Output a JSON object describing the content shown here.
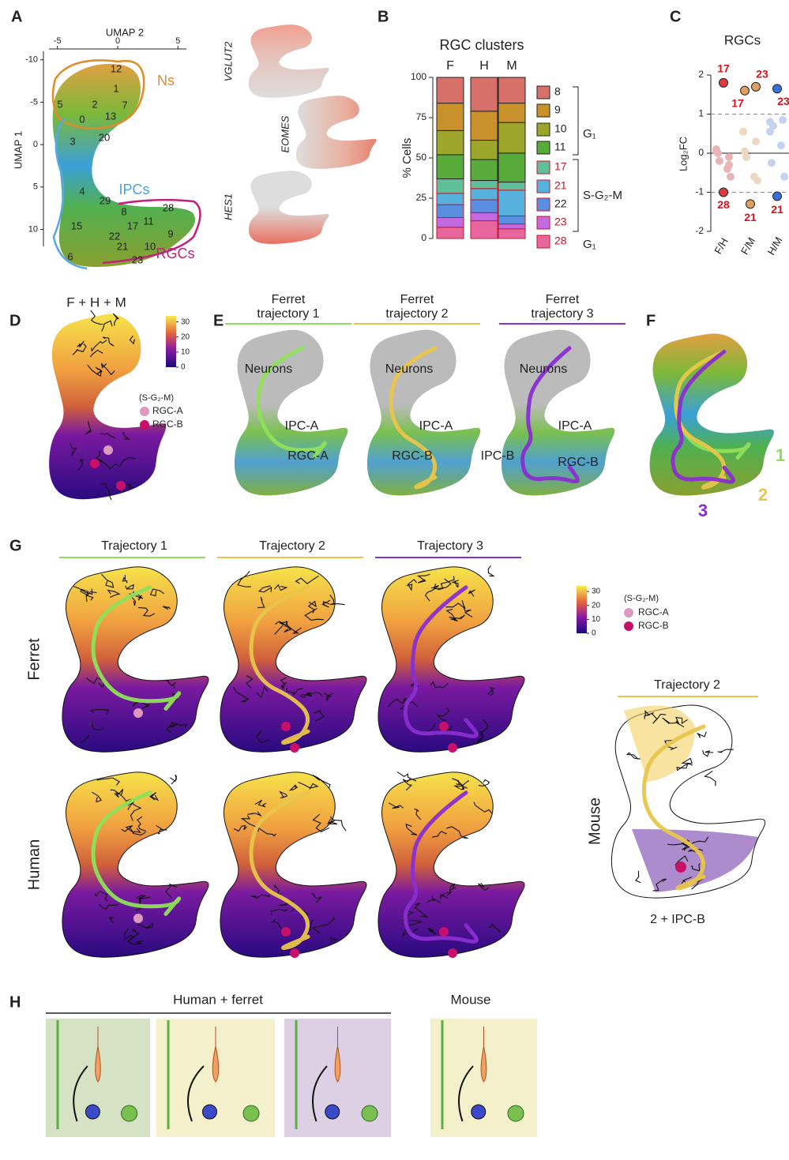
{
  "figure": {
    "A": {
      "letter": "A",
      "x_label": "UMAP 2",
      "y_label": "UMAP 1",
      "xlim": [
        -5.7,
        5.7
      ],
      "ylim": [
        -11,
        12
      ],
      "xticks": [
        -5,
        0,
        5
      ],
      "yticks": [
        -10,
        -5,
        0,
        5,
        10
      ],
      "clusters": [
        "12",
        "1",
        "5",
        "2",
        "7",
        "0",
        "13",
        "20",
        "3",
        "4",
        "29",
        "8",
        "28",
        "15",
        "22",
        "17",
        "11",
        "9",
        "21",
        "10",
        "6",
        "23"
      ],
      "groups": [
        "Ns",
        "IPCs",
        "RGCs"
      ],
      "genes": [
        "VGLUT2",
        "EOMES",
        "HES1"
      ]
    },
    "D": {
      "letter": "D",
      "title": "F + H + M",
      "colorbar": {
        "ylim": [
          0,
          34
        ],
        "yticks": [
          0,
          10,
          20,
          30
        ]
      },
      "phase": "(S-G₂-M)",
      "markers": [
        "RGC-A",
        "RGC-B"
      ]
    },
    "E": {
      "letter": "E",
      "panels": [
        {
          "title_lines": [
            "Ferret",
            "trajectory 1"
          ],
          "labels": [
            "Neurons",
            "IPC-A",
            "RGC-A"
          ]
        },
        {
          "title_lines": [
            "Ferret",
            "trajectory 2"
          ],
          "labels": [
            "Neurons",
            "IPC-A",
            "RGC-B"
          ]
        },
        {
          "title_lines": [
            "Ferret",
            "trajectory 3"
          ],
          "labels": [
            "Neurons",
            "IPC-A",
            "IPC-B",
            "RGC-B"
          ]
        }
      ]
    },
    "F": {
      "letter": "F",
      "labels": [
        "1",
        "2",
        "3"
      ]
    },
    "G": {
      "letter": "G",
      "trajectories": [
        "Trajectory 1",
        "Trajectory 2",
        "Trajectory 3"
      ],
      "species": [
        "Ferret",
        "Human"
      ],
      "colorbar": {
        "ylim": [
          0,
          34
        ],
        "yticks": [
          0,
          10,
          20,
          30
        ]
      },
      "phase": "(S-G₂-M)",
      "markers": [
        "RGC-A",
        "RGC-B"
      ],
      "mouse": {
        "title": "Trajectory 2",
        "species": "Mouse",
        "caption": "2 + IPC-B"
      }
    },
    "H": {
      "letter": "H",
      "groups": [
        "Human + ferret",
        "Mouse"
      ]
    }
  },
  "chart_data": [
    {
      "type": "stacked_bar",
      "label": "B",
      "title": "RGC clusters",
      "y_label": "% Cells",
      "categories": [
        "F",
        "H",
        "M"
      ],
      "ylim": [
        0,
        100
      ],
      "yticks": [
        0,
        25,
        50,
        75,
        100
      ],
      "series": [
        {
          "name": "28",
          "color": "#e8669e",
          "text_color": "#c0182a",
          "values": [
            7,
            11,
            6
          ]
        },
        {
          "name": "23",
          "color": "#c46ae0",
          "text_color": "#c0182a",
          "values": [
            6,
            5,
            3
          ]
        },
        {
          "name": "22",
          "color": "#5a8ee0",
          "text_color": "#222222",
          "values": [
            8,
            8,
            5
          ]
        },
        {
          "name": "21",
          "color": "#56b2dc",
          "text_color": "#c0182a",
          "values": [
            7,
            7,
            16
          ]
        },
        {
          "name": "17",
          "color": "#5fbf9a",
          "text_color": "#c0182a",
          "values": [
            9,
            5,
            5
          ]
        },
        {
          "name": "11",
          "color": "#58ab3a",
          "text_color": "#222222",
          "values": [
            15,
            13,
            18
          ]
        },
        {
          "name": "10",
          "color": "#9ca62a",
          "text_color": "#222222",
          "values": [
            15,
            12,
            19
          ]
        },
        {
          "name": "9",
          "color": "#c9912c",
          "text_color": "#222222",
          "values": [
            17,
            18,
            12
          ]
        },
        {
          "name": "8",
          "color": "#d8706a",
          "text_color": "#222222",
          "values": [
            16,
            21,
            16
          ]
        }
      ],
      "phases": [
        "G₁",
        "S-G₂-M",
        "G₁"
      ]
    },
    {
      "type": "dot",
      "label": "C",
      "title": "RGCs",
      "y_label": "Log₂FC",
      "categories": [
        "F/H",
        "F/M",
        "H/M"
      ],
      "ylim": [
        -2,
        2
      ],
      "yticks": [
        -2,
        -1,
        0,
        1,
        2
      ],
      "groups": [
        {
          "highlight": [
            {
              "value": 1.8,
              "label": "17",
              "color": "#e0393e"
            },
            {
              "value": -1.0,
              "label": "28",
              "color": "#e0393e"
            }
          ],
          "other": [
            0.05,
            -0.1,
            -0.2,
            -0.4,
            0.0,
            -0.6,
            0.1,
            -0.3
          ],
          "other_color": "#e8b4b4"
        },
        {
          "highlight": [
            {
              "value": 1.6,
              "label": "17",
              "color": "#dca060"
            },
            {
              "value": 1.7,
              "label": "23",
              "color": "#dca060"
            },
            {
              "value": -1.3,
              "label": "21",
              "color": "#dca060"
            }
          ],
          "other": [
            0.55,
            0.3,
            -0.1,
            -0.6,
            0.05,
            -0.7
          ],
          "other_color": "#eed8c0"
        },
        {
          "highlight": [
            {
              "value": 1.65,
              "label": "23",
              "color": "#3a6ed8"
            },
            {
              "value": -1.1,
              "label": "21",
              "color": "#3a6ed8"
            }
          ],
          "other": [
            0.8,
            0.85,
            0.7,
            0.2,
            -0.25,
            -0.6,
            0.55
          ],
          "other_color": "#c4d4f0"
        }
      ]
    }
  ]
}
